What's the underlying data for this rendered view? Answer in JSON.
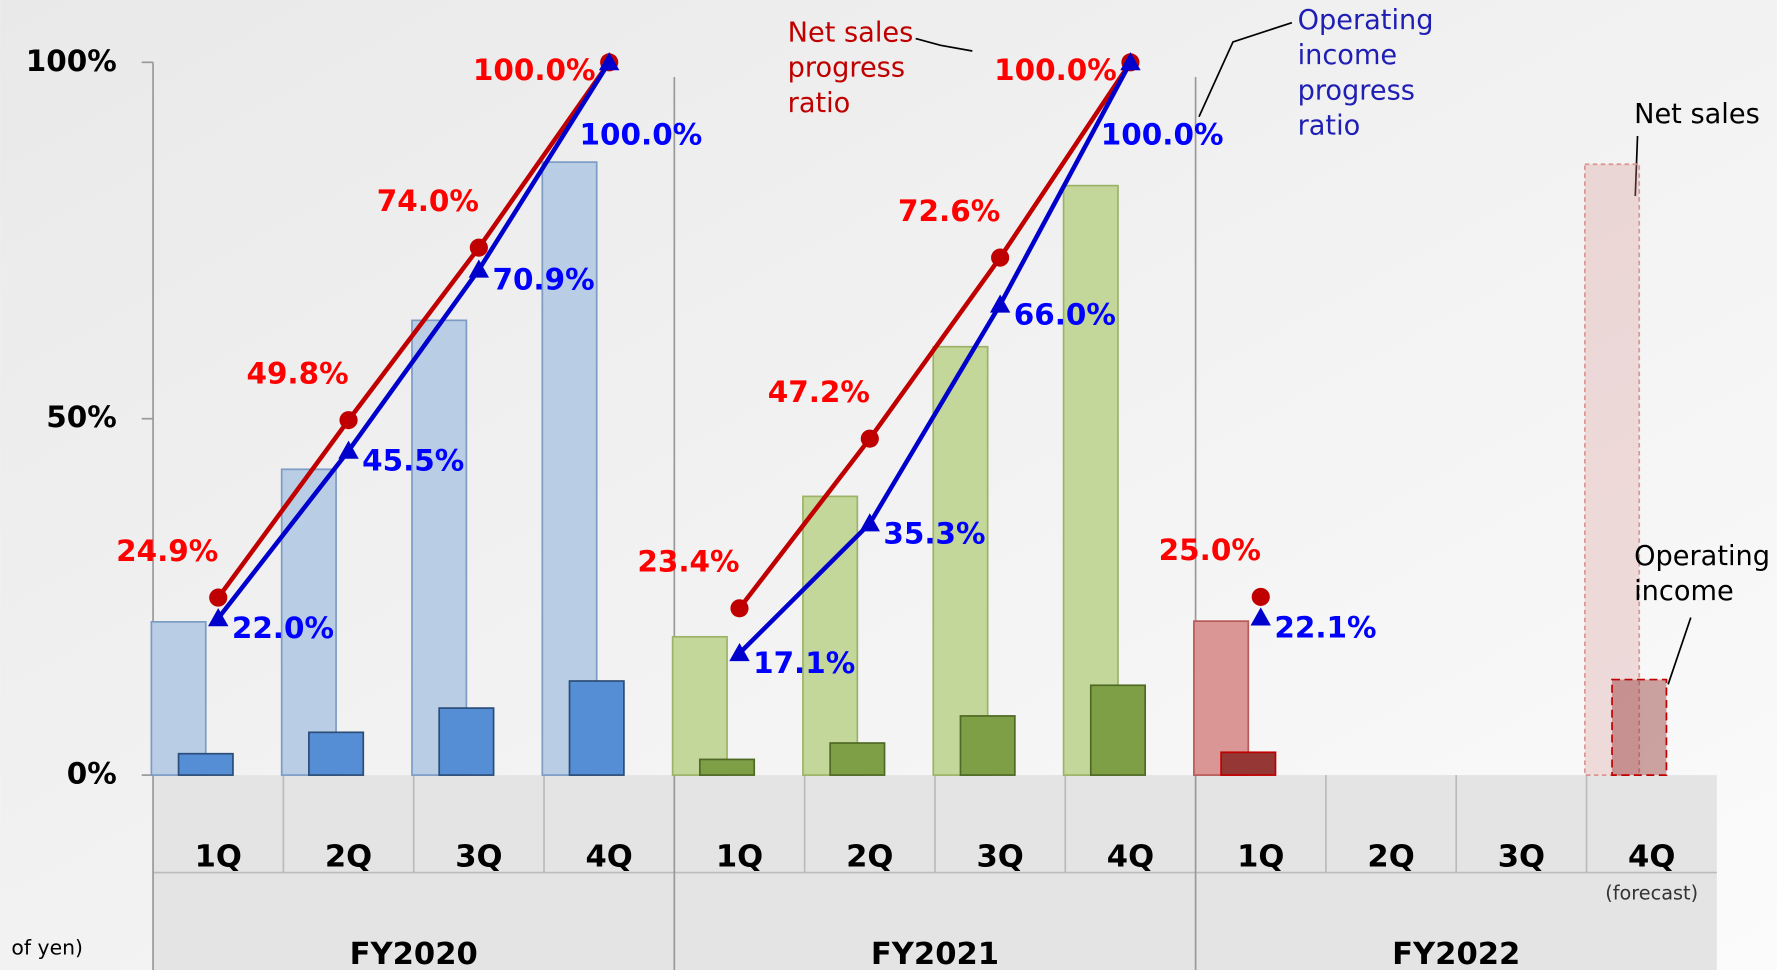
{
  "chart_data": {
    "type": "bar",
    "ylim": [
      0,
      100
    ],
    "yticks": [
      {
        "value": 0,
        "label": "0%"
      },
      {
        "value": 50,
        "label": "50%"
      },
      {
        "value": 100,
        "label": "100%"
      }
    ],
    "groups": [
      "FY2020",
      "FY2021",
      "FY2022"
    ],
    "categories": [
      "1Q",
      "2Q",
      "3Q",
      "4Q",
      "1Q",
      "2Q",
      "3Q",
      "4Q",
      "1Q",
      "2Q",
      "3Q",
      "4Q"
    ],
    "category_notes": [
      null,
      null,
      null,
      null,
      null,
      null,
      null,
      null,
      null,
      null,
      null,
      "(forecast)"
    ],
    "unit_note": "of yen)",
    "series": [
      {
        "name_lines": [
          "Net sales"
        ],
        "type": "bar",
        "colors": [
          "#b9cde5",
          "#c4d79b",
          "#d99694"
        ],
        "edge_colors": [
          "#7d9cc4",
          "#9bb367",
          "#b85a58"
        ],
        "values": [
          21.5,
          42.9,
          63.8,
          86.0,
          19.4,
          39.1,
          60.1,
          82.7,
          21.6,
          null,
          null,
          85.7
        ]
      },
      {
        "name_lines": [
          "Operating",
          "income"
        ],
        "type": "bar",
        "colors": [
          "#558ed5",
          "#7f9f47",
          "#953735"
        ],
        "edge_colors": [
          "#2c4d78",
          "#4f6a25",
          "#c00000"
        ],
        "values": [
          3.0,
          6.0,
          9.4,
          13.2,
          2.2,
          4.5,
          8.3,
          12.6,
          3.2,
          null,
          null,
          13.4
        ]
      },
      {
        "name_lines": [
          "Net sales",
          "progress",
          "ratio"
        ],
        "type": "line",
        "color": "#c00000",
        "label_color": "#ff0000",
        "values": [
          24.9,
          49.8,
          74.0,
          100.0,
          23.4,
          47.2,
          72.6,
          100.0,
          25.0,
          null,
          null,
          null
        ],
        "value_labels": [
          "24.9%",
          "49.8%",
          "74.0%",
          "100.0%",
          "23.4%",
          "47.2%",
          "72.6%",
          "100.0%",
          "25.0%",
          null,
          null,
          null
        ]
      },
      {
        "name_lines": [
          "Operating",
          "income",
          "progress",
          "ratio"
        ],
        "type": "line",
        "color": "#0000cc",
        "label_color": "#0000ff",
        "values": [
          22.0,
          45.5,
          70.9,
          100.0,
          17.1,
          35.3,
          66.0,
          100.0,
          22.1,
          null,
          null,
          null
        ],
        "value_labels": [
          "22.0%",
          "45.5%",
          "70.9%",
          "100.0%",
          "17.1%",
          "35.3%",
          "66.0%",
          "100.0%",
          "22.1%",
          null,
          null,
          null
        ]
      }
    ]
  }
}
